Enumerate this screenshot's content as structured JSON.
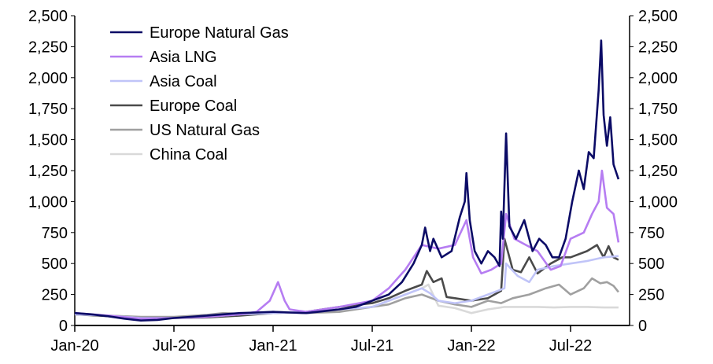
{
  "chart_data": {
    "type": "line",
    "title": "",
    "xlabel": "",
    "ylabel": "",
    "x_unit": "months since Jan-20",
    "xlim": [
      0,
      33.3
    ],
    "ylim": [
      0,
      2500
    ],
    "y_ticks": [
      0,
      250,
      500,
      750,
      1000,
      1250,
      1500,
      1750,
      2000,
      2250,
      2500
    ],
    "y_tick_labels": [
      "0",
      "250",
      "500",
      "750",
      "1,000",
      "1,250",
      "1,500",
      "1,750",
      "2,000",
      "2,250",
      "2,500"
    ],
    "x_ticks": [
      0,
      6,
      12,
      18,
      24,
      30
    ],
    "x_tick_labels": [
      "Jan-20",
      "Jul-20",
      "Jan-21",
      "Jul-21",
      "Jan-22",
      "Jul-22"
    ],
    "grid": false,
    "legend_position": "top-left",
    "series": [
      {
        "name": "Europe Natural Gas",
        "color": "#0b0b66",
        "x": [
          0,
          1,
          2,
          3,
          4,
          5,
          6,
          7,
          8,
          9,
          10,
          11,
          12,
          13,
          14,
          15,
          16,
          17,
          18,
          19,
          19.8,
          20.5,
          21.0,
          21.2,
          21.5,
          21.7,
          22.2,
          22.8,
          23.3,
          23.6,
          23.7,
          23.9,
          24.2,
          24.6,
          25.0,
          25.4,
          25.7,
          25.8,
          25.9,
          26.1,
          26.3,
          26.7,
          27.2,
          27.7,
          28.1,
          28.5,
          28.9,
          29.3,
          29.7,
          30.1,
          30.5,
          30.8,
          31.1,
          31.4,
          31.7,
          31.85,
          32.0,
          32.2,
          32.4,
          32.6,
          32.9
        ],
        "y": [
          100,
          90,
          75,
          55,
          40,
          45,
          60,
          70,
          80,
          90,
          100,
          105,
          110,
          105,
          100,
          115,
          130,
          150,
          200,
          250,
          350,
          500,
          650,
          790,
          600,
          700,
          550,
          600,
          875,
          1000,
          1230,
          850,
          600,
          500,
          600,
          550,
          480,
          920,
          700,
          1550,
          800,
          700,
          850,
          600,
          700,
          650,
          550,
          550,
          700,
          1000,
          1250,
          1100,
          1400,
          1350,
          1900,
          2300,
          1700,
          1450,
          1680,
          1300,
          1180
        ]
      },
      {
        "name": "Asia LNG",
        "color": "#b67df2",
        "x": [
          0,
          2,
          4,
          6,
          8,
          10,
          11,
          11.8,
          12.3,
          12.7,
          13,
          14,
          16,
          18,
          19,
          20,
          21,
          22,
          23,
          23.7,
          24.1,
          24.6,
          25.2,
          25.8,
          26.1,
          26.6,
          27.3,
          28,
          28.8,
          29.4,
          30,
          30.8,
          31.3,
          31.7,
          31.9,
          32.2,
          32.6,
          32.9
        ],
        "y": [
          100,
          80,
          55,
          60,
          70,
          90,
          110,
          200,
          350,
          200,
          130,
          110,
          150,
          200,
          300,
          450,
          650,
          620,
          650,
          850,
          550,
          420,
          450,
          500,
          900,
          700,
          650,
          600,
          450,
          480,
          700,
          750,
          900,
          1000,
          1250,
          950,
          900,
          670
        ]
      },
      {
        "name": "Asia Coal",
        "color": "#c0c4f8",
        "x": [
          0,
          2,
          4,
          6,
          8,
          10,
          12,
          14,
          16,
          18,
          19,
          20,
          21,
          21.5,
          22,
          23,
          24,
          25,
          26,
          26.1,
          26.8,
          27.5,
          28,
          29,
          30,
          31,
          32,
          32.9
        ],
        "y": [
          90,
          80,
          60,
          60,
          70,
          90,
          100,
          110,
          130,
          150,
          200,
          250,
          300,
          260,
          200,
          180,
          200,
          250,
          300,
          500,
          400,
          350,
          450,
          480,
          500,
          520,
          550,
          560
        ]
      },
      {
        "name": "Europe Coal",
        "color": "#4a4a4a",
        "x": [
          0,
          2,
          4,
          6,
          8,
          10,
          12,
          14,
          16,
          18,
          19,
          20,
          21,
          21.3,
          21.7,
          22.2,
          22.5,
          23,
          24,
          25,
          25.8,
          26.0,
          26.5,
          27,
          27.5,
          28,
          28.8,
          29.5,
          30,
          31,
          31.6,
          32,
          32.3,
          32.6,
          32.9
        ],
        "y": [
          90,
          75,
          60,
          60,
          65,
          80,
          100,
          110,
          150,
          180,
          220,
          280,
          330,
          440,
          350,
          380,
          230,
          220,
          200,
          220,
          280,
          700,
          450,
          430,
          550,
          420,
          500,
          550,
          550,
          600,
          650,
          550,
          640,
          550,
          530
        ]
      },
      {
        "name": "US Natural Gas",
        "color": "#a0a0a0",
        "x": [
          0,
          2,
          4,
          6,
          8,
          9,
          10,
          12,
          14,
          16,
          18,
          19,
          20,
          21,
          22,
          23,
          24,
          25,
          25.8,
          26.5,
          27.5,
          28.5,
          29.3,
          30,
          30.8,
          31.3,
          31.8,
          32.2,
          32.6,
          32.9
        ],
        "y": [
          90,
          80,
          70,
          70,
          85,
          100,
          95,
          110,
          100,
          110,
          150,
          170,
          220,
          250,
          200,
          170,
          150,
          200,
          180,
          220,
          250,
          300,
          330,
          250,
          300,
          380,
          340,
          350,
          320,
          270
        ]
      },
      {
        "name": "China Coal",
        "color": "#d9d9d9",
        "x": [
          0,
          2,
          4,
          6,
          8,
          10,
          12,
          14,
          16,
          18,
          19,
          20,
          21,
          21.4,
          22,
          23,
          24,
          25,
          26,
          27,
          28,
          29,
          30,
          31,
          32,
          32.9
        ],
        "y": [
          90,
          80,
          65,
          65,
          75,
          90,
          110,
          100,
          120,
          150,
          200,
          250,
          300,
          330,
          160,
          140,
          100,
          130,
          150,
          150,
          150,
          145,
          150,
          150,
          145,
          145
        ]
      }
    ]
  }
}
